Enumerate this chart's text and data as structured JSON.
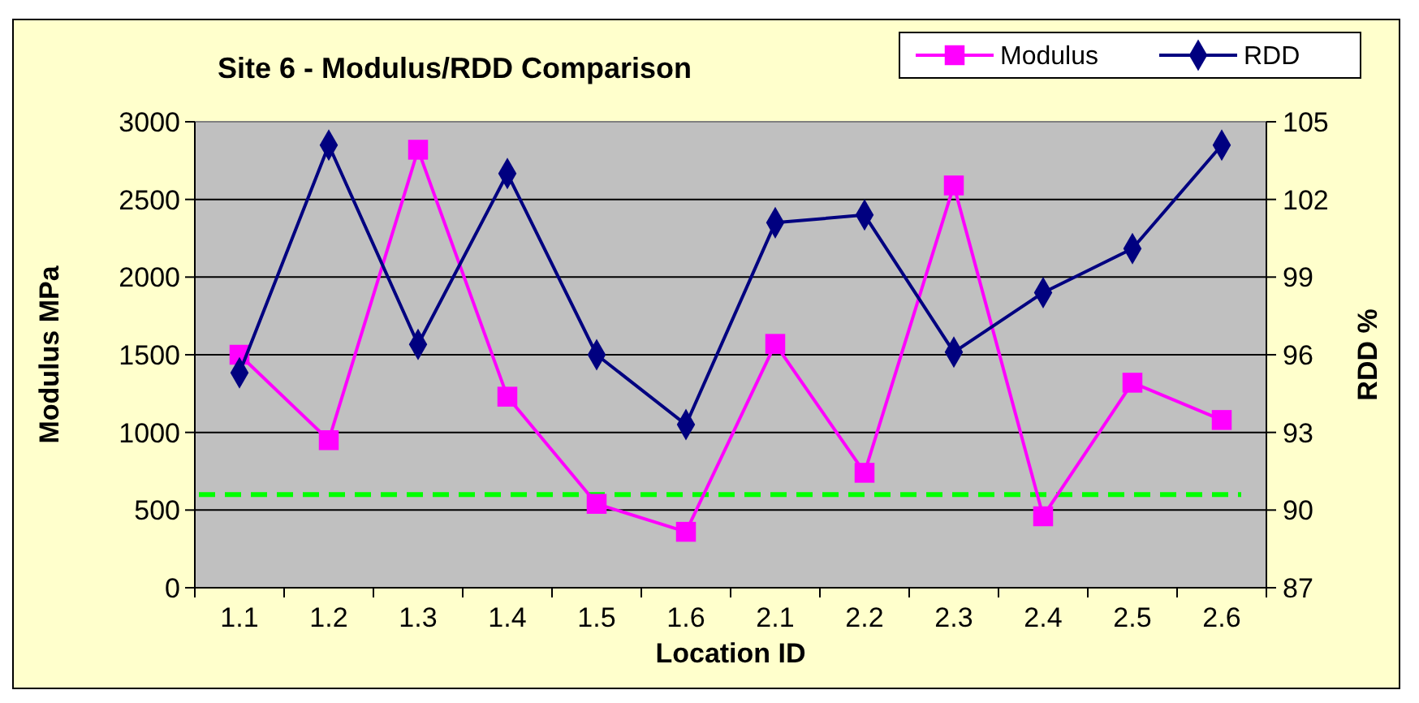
{
  "chart_data": {
    "type": "line",
    "title": "Site 6 - Modulus/RDD Comparison",
    "xlabel": "Location ID",
    "ylabel": "Modulus MPa",
    "y2label": "RDD %",
    "categories": [
      "1.1",
      "1.2",
      "1.3",
      "1.4",
      "1.5",
      "1.6",
      "2.1",
      "2.2",
      "2.3",
      "2.4",
      "2.5",
      "2.6"
    ],
    "series": [
      {
        "name": "Modulus",
        "color": "#ff00ff",
        "marker": "square",
        "values": [
          1500,
          950,
          2820,
          1230,
          540,
          360,
          1570,
          740,
          2590,
          460,
          1320,
          1080
        ]
      },
      {
        "name": "RDD",
        "color": "#000080",
        "marker": "diamond",
        "axis": "y2",
        "values": [
          95.3,
          104.1,
          96.4,
          103.0,
          96.0,
          93.3,
          101.1,
          101.4,
          96.1,
          98.4,
          100.1,
          104.1
        ]
      }
    ],
    "ylim": [
      0,
      3000
    ],
    "yticks": [
      0,
      500,
      1000,
      1500,
      2000,
      2500,
      3000
    ],
    "y2lim": [
      87,
      105
    ],
    "y2ticks": [
      87,
      90,
      93,
      96,
      99,
      102,
      105
    ],
    "ref_lines": [
      {
        "axis": "y",
        "value": 600,
        "color": "#00ff00",
        "line_style": "dashed"
      }
    ],
    "grid": "y",
    "legend": "top right"
  }
}
